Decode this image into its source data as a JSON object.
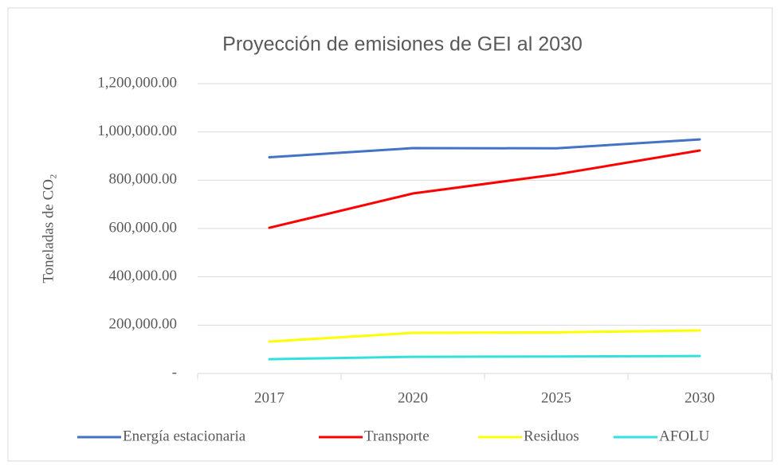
{
  "chart_data": {
    "type": "line",
    "title": "Proyección de emisiones de GEI al 2030",
    "y_label": "Toneladas de CO₂",
    "categories": [
      "2017",
      "2020",
      "2025",
      "2030"
    ],
    "series": [
      {
        "name": "Energía estacionaria",
        "color": "#4472c4",
        "values": [
          895000,
          933000,
          932000,
          969000
        ]
      },
      {
        "name": "Transporte",
        "color": "#ff0000",
        "values": [
          603000,
          745000,
          824000,
          923000
        ]
      },
      {
        "name": "Residuos",
        "color": "#ffff00",
        "values": [
          132000,
          168000,
          170000,
          178000
        ]
      },
      {
        "name": "AFOLU",
        "color": "#33e0e0",
        "values": [
          59000,
          69000,
          70000,
          72000
        ]
      }
    ],
    "ylim": [
      0,
      1200000
    ],
    "yticks": [
      {
        "value": 0,
        "label": "-"
      },
      {
        "value": 200000,
        "label": "200,000.00"
      },
      {
        "value": 400000,
        "label": "400,000.00"
      },
      {
        "value": 600000,
        "label": "600,000.00"
      },
      {
        "value": 800000,
        "label": "800,000.00"
      },
      {
        "value": 1000000,
        "label": "1,000,000.00"
      },
      {
        "value": 1200000,
        "label": "1,200,000.00"
      }
    ],
    "grid": true,
    "legend": "bottom"
  }
}
